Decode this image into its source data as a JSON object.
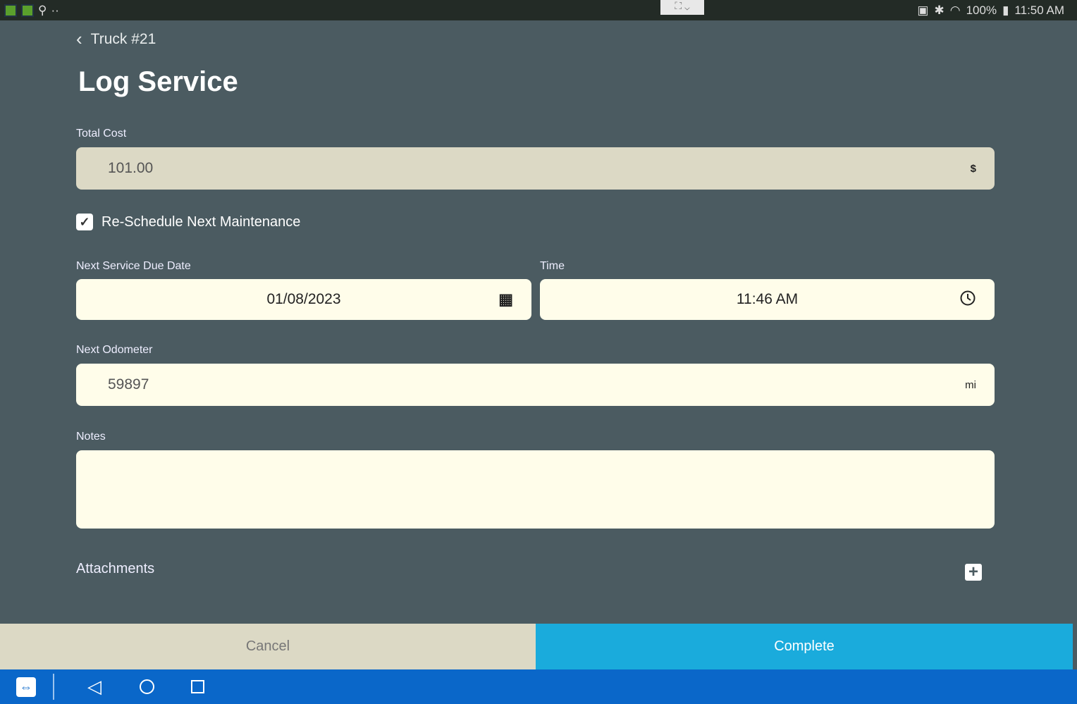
{
  "status_bar": {
    "battery": "100%",
    "time": "11:50 AM",
    "dots": "··"
  },
  "header": {
    "back_label": "Truck #21",
    "title": "Log Service"
  },
  "form": {
    "total_cost": {
      "label": "Total Cost",
      "value": "101.00",
      "unit": "$"
    },
    "reschedule": {
      "label": "Re-Schedule Next Maintenance",
      "checked": true
    },
    "due_date": {
      "label": "Next Service Due Date",
      "value": "01/08/2023"
    },
    "time": {
      "label": "Time",
      "value": "11:46 AM"
    },
    "odometer": {
      "label": "Next Odometer",
      "value": "59897",
      "unit": "mi"
    },
    "notes": {
      "label": "Notes",
      "value": ""
    },
    "attachments": {
      "label": "Attachments"
    }
  },
  "actions": {
    "cancel": "Cancel",
    "complete": "Complete"
  },
  "colors": {
    "background": "#4b5b61",
    "complete": "#1aabdc",
    "cancel": "#dcd9c5",
    "navbar": "#0a67c9"
  }
}
